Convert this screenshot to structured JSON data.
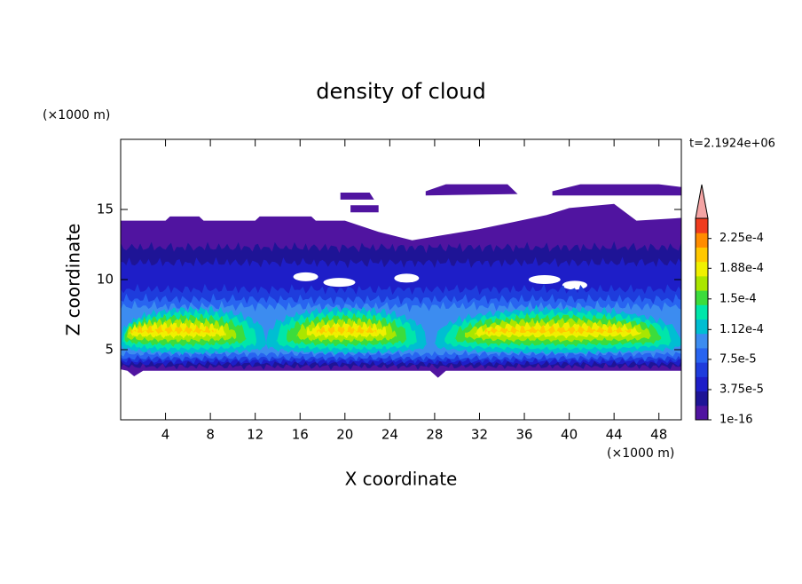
{
  "chart_data": {
    "type": "contour",
    "title": "density of cloud",
    "xlabel": "X coordinate",
    "ylabel": "Z coordinate",
    "x_unit": "(×1000 m)",
    "y_unit": "(×1000 m)",
    "annotation": "t=2.1924e+06",
    "xlim": [
      0,
      50
    ],
    "ylim": [
      0,
      20
    ],
    "xticks": [
      4,
      8,
      12,
      16,
      20,
      24,
      28,
      32,
      36,
      40,
      44,
      48
    ],
    "yticks": [
      5,
      10,
      15
    ],
    "colorbar": {
      "lim": [
        0,
        0.00025
      ],
      "ticks": [
        1e-16,
        {
          "value": 3.75e-05,
          "label": "3.75e-5"
        },
        {
          "value": 7.5e-05,
          "label": "7.5e-5"
        },
        {
          "value": 0.000112,
          "label": "1.12e-4"
        },
        {
          "value": 0.00015,
          "label": "1.5e-4"
        },
        {
          "value": 0.000188,
          "label": "1.88e-4"
        },
        {
          "value": 0.000225,
          "label": "2.25e-4"
        }
      ],
      "colors": [
        "#5014a0",
        "#1e1496",
        "#1e1ec8",
        "#1e3cdc",
        "#2864f0",
        "#3c8cf0",
        "#00bed2",
        "#00e6aa",
        "#3cdc3c",
        "#aae600",
        "#f0f000",
        "#ffc800",
        "#ff8c00",
        "#f03c1e"
      ],
      "extend_color": "#f4a4a4"
    }
  }
}
